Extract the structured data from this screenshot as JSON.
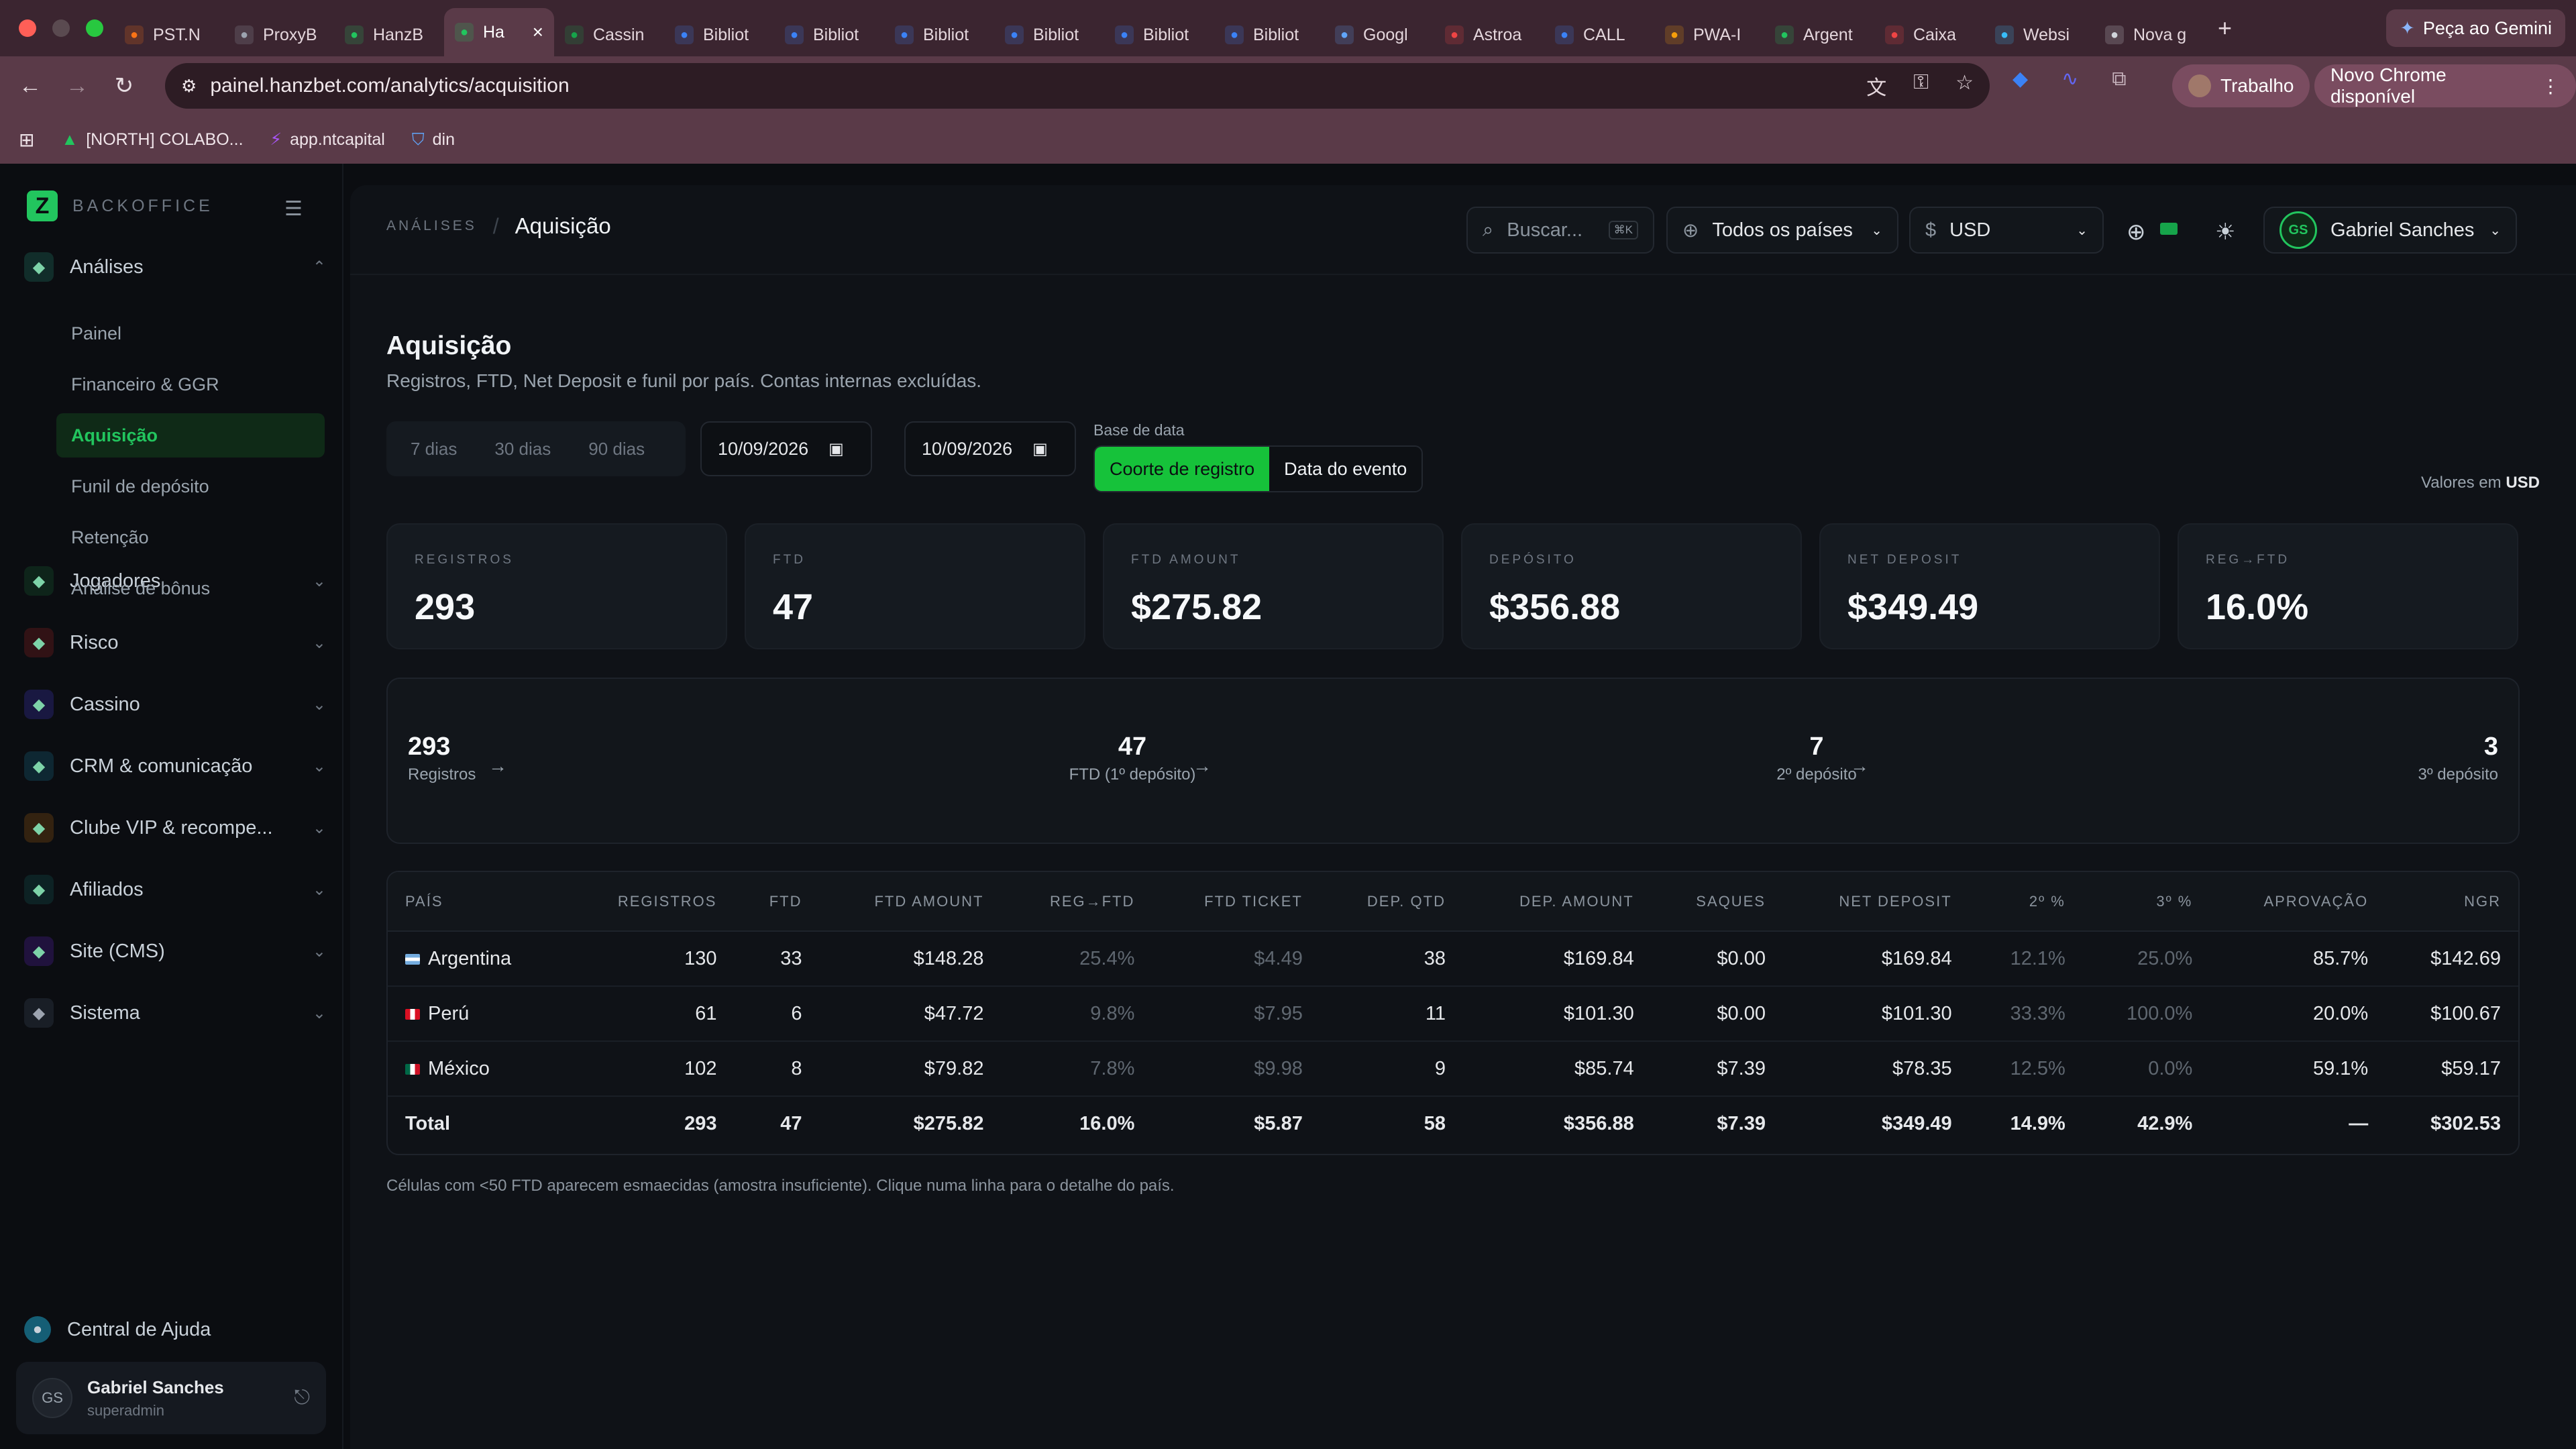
{
  "browser": {
    "tabs": [
      {
        "label": "PST.N",
        "icon": "flame-icon",
        "color": "#f97316"
      },
      {
        "label": "ProxyB",
        "icon": "proxy-icon",
        "color": "#9ca3af"
      },
      {
        "label": "HanzB",
        "icon": "hanzbet-icon",
        "color": "#22c55e"
      },
      {
        "label": "Ha",
        "icon": "hanzbet-icon",
        "color": "#22c55e",
        "active": true
      },
      {
        "label": "Cassin",
        "icon": "sheets-icon",
        "color": "#16a34a"
      },
      {
        "label": "Bibliot",
        "icon": "meta-icon",
        "color": "#3b82f6"
      },
      {
        "label": "Bibliot",
        "icon": "meta-icon",
        "color": "#3b82f6"
      },
      {
        "label": "Bibliot",
        "icon": "meta-icon",
        "color": "#3b82f6"
      },
      {
        "label": "Bibliot",
        "icon": "meta-icon",
        "color": "#3b82f6"
      },
      {
        "label": "Bibliot",
        "icon": "meta-icon",
        "color": "#3b82f6"
      },
      {
        "label": "Bibliot",
        "icon": "meta-icon",
        "color": "#3b82f6"
      },
      {
        "label": "Googl",
        "icon": "gemini-icon",
        "color": "#60a5fa"
      },
      {
        "label": "Astroa",
        "icon": "gmail-icon",
        "color": "#ef4444"
      },
      {
        "label": "CALL",
        "icon": "docs-icon",
        "color": "#3b82f6"
      },
      {
        "label": "PWA-I",
        "icon": "firebase-icon",
        "color": "#f59e0b"
      },
      {
        "label": "Argent",
        "icon": "drive-icon",
        "color": "#22c55e"
      },
      {
        "label": "Caixa",
        "icon": "gmail-icon",
        "color": "#ef4444"
      },
      {
        "label": "Websi",
        "icon": "web-icon",
        "color": "#38bdf8"
      },
      {
        "label": "Nova g",
        "icon": "chrome-icon",
        "color": "#d1d5db"
      }
    ],
    "new_tab": "+",
    "gemini_label": "Peça ao Gemini",
    "url": "painel.hanzbet.com/analytics/acquisition",
    "profile_label": "Trabalho",
    "update_label": "Novo Chrome disponível",
    "bookmarks": [
      {
        "label": "[NORTH] COLABO...",
        "icon": "drive-icon"
      },
      {
        "label": "app.ntcapital",
        "icon": "bolt-icon"
      },
      {
        "label": "din",
        "icon": "shield-icon"
      }
    ]
  },
  "sidebar": {
    "brand": "BACKOFFICE",
    "groups": [
      {
        "label": "Análises",
        "icon": "chart-icon",
        "color": "#1f6f5c"
      },
      {
        "label": "Jogadores",
        "icon": "users-icon",
        "color": "#14532d"
      },
      {
        "label": "Risco",
        "icon": "shield-icon",
        "color": "#7f1d1d"
      },
      {
        "label": "Cassino",
        "icon": "gamepad-icon",
        "color": "#3730a3"
      },
      {
        "label": "CRM & comunicação",
        "icon": "crm-icon",
        "color": "#155e75"
      },
      {
        "label": "Clube VIP & recompe...",
        "icon": "trophy-icon",
        "color": "#854d0e"
      },
      {
        "label": "Afiliados",
        "icon": "affiliate-icon",
        "color": "#134e4a"
      },
      {
        "label": "Site (CMS)",
        "icon": "cms-icon",
        "color": "#4c1d95"
      },
      {
        "label": "Sistema",
        "icon": "gear-icon",
        "color": "#374151"
      }
    ],
    "subitems": [
      "Painel",
      "Financeiro & GGR",
      "Aquisição",
      "Funil de depósito",
      "Retenção",
      "Análise de bônus"
    ],
    "help": "Central de Ajuda",
    "user": {
      "initials": "GS",
      "name": "Gabriel Sanches",
      "role": "superadmin"
    }
  },
  "topbar": {
    "breadcrumb_parent": "ANÁLISES",
    "breadcrumb_sep": "/",
    "breadcrumb_current": "Aquisição",
    "search_placeholder": "Buscar...",
    "search_kbd": "⌘K",
    "country_select": "Todos os países",
    "currency_symbol": "$",
    "currency": "USD",
    "user_initials": "GS",
    "user_name": "Gabriel Sanches"
  },
  "page": {
    "title": "Aquisição",
    "subtitle": "Registros, FTD, Net Deposit e funil por país. Contas internas excluídas.",
    "ranges": [
      "7 dias",
      "30 dias",
      "90 dias"
    ],
    "date_from": "10/09/2026",
    "date_to": "10/09/2026",
    "date_sep": "–",
    "date_base_label": "Base de data",
    "date_base_options": [
      "Coorte de registro",
      "Data do evento"
    ],
    "values_in_prefix": "Valores em",
    "values_in_currency": "USD"
  },
  "kpis": [
    {
      "label": "REGISTROS",
      "value": "293"
    },
    {
      "label": "FTD",
      "value": "47"
    },
    {
      "label": "FTD AMOUNT",
      "value": "$275.82"
    },
    {
      "label": "DEPÓSITO",
      "value": "$356.88"
    },
    {
      "label": "NET DEPOSIT",
      "value": "$349.49"
    },
    {
      "label": "REG→FTD",
      "value": "16.0%"
    }
  ],
  "funnel": [
    {
      "value": "293",
      "label": "Registros"
    },
    {
      "value": "47",
      "label": "FTD (1º depósito)"
    },
    {
      "value": "7",
      "label": "2º depósito"
    },
    {
      "value": "3",
      "label": "3º depósito"
    }
  ],
  "table": {
    "headers": [
      "PAÍS",
      "REGISTROS",
      "FTD",
      "FTD AMOUNT",
      "REG→FTD",
      "FTD TICKET",
      "DEP. QTD",
      "DEP. AMOUNT",
      "SAQUES",
      "NET DEPOSIT",
      "2º %",
      "3º %",
      "APROVAÇÃO",
      "NGR"
    ],
    "rows": [
      [
        "Argentina",
        "130",
        "33",
        "$148.28",
        "25.4%",
        "$4.49",
        "38",
        "$169.84",
        "$0.00",
        "$169.84",
        "12.1%",
        "25.0%",
        "85.7%",
        "$142.69"
      ],
      [
        "Perú",
        "61",
        "6",
        "$47.72",
        "9.8%",
        "$7.95",
        "11",
        "$101.30",
        "$0.00",
        "$101.30",
        "33.3%",
        "100.0%",
        "20.0%",
        "$100.67"
      ],
      [
        "México",
        "102",
        "8",
        "$79.82",
        "7.8%",
        "$9.98",
        "9",
        "$85.74",
        "$7.39",
        "$78.35",
        "12.5%",
        "0.0%",
        "59.1%",
        "$59.17"
      ]
    ],
    "total": [
      "Total",
      "293",
      "47",
      "$275.82",
      "16.0%",
      "$5.87",
      "58",
      "$356.88",
      "$7.39",
      "$349.49",
      "14.9%",
      "42.9%",
      "—",
      "$302.53"
    ],
    "flags": [
      "argentina-flag-icon",
      "peru-flag-icon",
      "mexico-flag-icon"
    ],
    "footnote": "Células com <50 FTD aparecem esmaecidas (amostra insuficiente). Clique numa linha para o detalhe do país."
  }
}
